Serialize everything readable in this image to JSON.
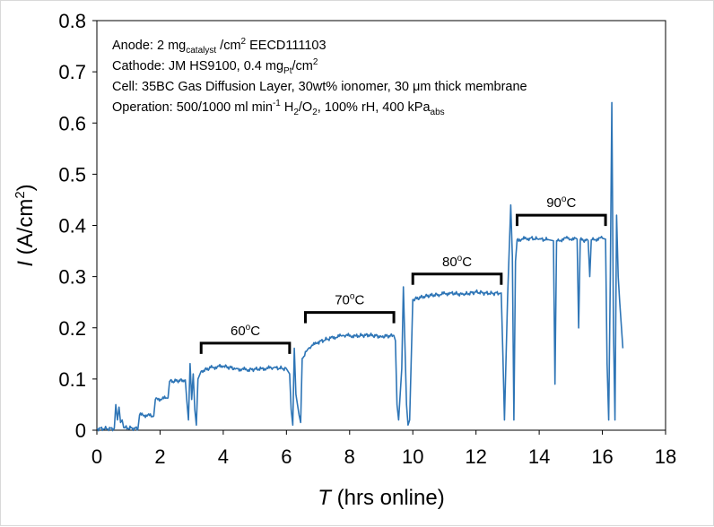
{
  "chart_data": {
    "type": "line",
    "title": "",
    "xlabel": {
      "italic": "T",
      "rest": " (hrs online)"
    },
    "ylabel": {
      "italic": "I",
      "rest": " (A/cm",
      "sup": "2",
      "end": ")"
    },
    "xlim": [
      0,
      18
    ],
    "ylim": [
      0,
      0.8
    ],
    "x_ticks": [
      0,
      2,
      4,
      6,
      8,
      10,
      12,
      14,
      16,
      18
    ],
    "y_ticks": [
      0,
      0.1,
      0.2,
      0.3,
      0.4,
      0.5,
      0.6,
      0.7,
      0.8
    ],
    "x_tick_labels": [
      "0",
      "2",
      "4",
      "6",
      "8",
      "10",
      "12",
      "14",
      "16",
      "18"
    ],
    "y_tick_labels": [
      "0",
      "0.1",
      "0.2",
      "0.3",
      "0.4",
      "0.5",
      "0.6",
      "0.7",
      "0.8"
    ],
    "grid": false,
    "line_color": "#2e75b6",
    "annotations": [
      {
        "runs": [
          [
            "Anode: 2 mg",
            ""
          ],
          [
            "catalyst",
            "sub"
          ],
          [
            " /cm",
            ""
          ],
          [
            "2",
            "sup"
          ],
          [
            " EECD111103",
            ""
          ]
        ]
      },
      {
        "runs": [
          [
            "Cathode: JM HS9100, 0.4 mg",
            ""
          ],
          [
            "Pt",
            "sub"
          ],
          [
            "/cm",
            ""
          ],
          [
            "2",
            "sup"
          ]
        ]
      },
      {
        "runs": [
          [
            "Cell: 35BC Gas Diffusion Layer,  30wt% ionomer, 30 μm thick membrane",
            ""
          ]
        ]
      },
      {
        "runs": [
          [
            "Operation: 500/1000 ml min",
            ""
          ],
          [
            "-1",
            "sup"
          ],
          [
            " H",
            ""
          ],
          [
            "2",
            "sub"
          ],
          [
            "/O",
            ""
          ],
          [
            "2",
            "sub"
          ],
          [
            ", 100% rH, 400 kPa",
            ""
          ],
          [
            "abs",
            "sub"
          ]
        ]
      }
    ],
    "temperature_brackets": [
      {
        "label": "60",
        "unit": "oC",
        "x_start": 3.3,
        "x_end": 6.1,
        "y": 0.17
      },
      {
        "label": "70",
        "unit": "oC",
        "x_start": 6.6,
        "x_end": 9.4,
        "y": 0.23
      },
      {
        "label": "80",
        "unit": "oC",
        "x_start": 10.0,
        "x_end": 12.8,
        "y": 0.305
      },
      {
        "label": "90",
        "unit": "oC",
        "x_start": 13.3,
        "x_end": 16.1,
        "y": 0.42
      }
    ],
    "series": [
      {
        "values": [
          [
            0,
            0.003
          ],
          [
            0.55,
            0.003
          ],
          [
            0.6,
            0.05
          ],
          [
            0.65,
            0.02
          ],
          [
            0.7,
            0.045
          ],
          [
            0.75,
            0.015
          ],
          [
            0.8,
            0.02
          ],
          [
            0.85,
            0.005
          ],
          [
            1.3,
            0.003
          ],
          [
            1.35,
            0.03
          ],
          [
            1.8,
            0.028
          ],
          [
            1.85,
            0.06
          ],
          [
            2.25,
            0.063
          ],
          [
            2.3,
            0.095
          ],
          [
            2.8,
            0.098
          ],
          [
            2.85,
            0.055
          ],
          [
            2.9,
            0.02
          ],
          [
            2.95,
            0.13
          ],
          [
            3.0,
            0.06
          ],
          [
            3.05,
            0.11
          ],
          [
            3.1,
            0.04
          ],
          [
            3.15,
            0.01
          ],
          [
            3.2,
            0.1
          ],
          [
            3.3,
            0.115
          ],
          [
            3.6,
            0.122
          ],
          [
            4.0,
            0.125
          ],
          [
            4.4,
            0.12
          ],
          [
            4.8,
            0.118
          ],
          [
            5.2,
            0.12
          ],
          [
            5.6,
            0.122
          ],
          [
            6.0,
            0.12
          ],
          [
            6.1,
            0.11
          ],
          [
            6.15,
            0.04
          ],
          [
            6.2,
            0.01
          ],
          [
            6.25,
            0.16
          ],
          [
            6.3,
            0.07
          ],
          [
            6.4,
            0.03
          ],
          [
            6.45,
            0.015
          ],
          [
            6.5,
            0.14
          ],
          [
            6.7,
            0.16
          ],
          [
            7.0,
            0.172
          ],
          [
            7.4,
            0.18
          ],
          [
            7.8,
            0.185
          ],
          [
            8.2,
            0.184
          ],
          [
            8.6,
            0.186
          ],
          [
            9.0,
            0.183
          ],
          [
            9.4,
            0.185
          ],
          [
            9.45,
            0.175
          ],
          [
            9.5,
            0.05
          ],
          [
            9.55,
            0.02
          ],
          [
            9.65,
            0.12
          ],
          [
            9.7,
            0.28
          ],
          [
            9.75,
            0.17
          ],
          [
            9.8,
            0.05
          ],
          [
            9.85,
            0.01
          ],
          [
            9.9,
            0.02
          ],
          [
            10.0,
            0.255
          ],
          [
            10.4,
            0.262
          ],
          [
            10.8,
            0.265
          ],
          [
            11.2,
            0.268
          ],
          [
            11.6,
            0.265
          ],
          [
            12.0,
            0.27
          ],
          [
            12.4,
            0.267
          ],
          [
            12.8,
            0.268
          ],
          [
            12.85,
            0.15
          ],
          [
            12.9,
            0.02
          ],
          [
            13.0,
            0.26
          ],
          [
            13.1,
            0.44
          ],
          [
            13.15,
            0.34
          ],
          [
            13.2,
            0.02
          ],
          [
            13.25,
            0.33
          ],
          [
            13.3,
            0.372
          ],
          [
            13.7,
            0.375
          ],
          [
            14.0,
            0.373
          ],
          [
            14.3,
            0.372
          ],
          [
            14.45,
            0.37
          ],
          [
            14.5,
            0.09
          ],
          [
            14.55,
            0.37
          ],
          [
            14.9,
            0.375
          ],
          [
            15.2,
            0.373
          ],
          [
            15.25,
            0.2
          ],
          [
            15.3,
            0.372
          ],
          [
            15.55,
            0.37
          ],
          [
            15.6,
            0.3
          ],
          [
            15.65,
            0.372
          ],
          [
            16.0,
            0.375
          ],
          [
            16.1,
            0.373
          ],
          [
            16.15,
            0.13
          ],
          [
            16.2,
            0.02
          ],
          [
            16.25,
            0.3
          ],
          [
            16.3,
            0.64
          ],
          [
            16.35,
            0.2
          ],
          [
            16.4,
            0.02
          ],
          [
            16.45,
            0.42
          ],
          [
            16.5,
            0.3
          ],
          [
            16.55,
            0.25
          ],
          [
            16.65,
            0.16
          ]
        ]
      }
    ]
  }
}
